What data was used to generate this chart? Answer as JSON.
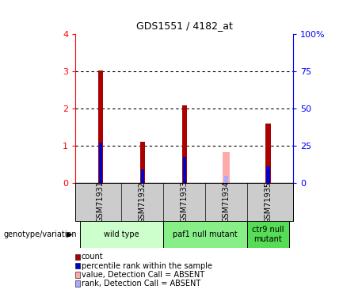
{
  "title": "GDS1551 / 4182_at",
  "samples": [
    "GSM71931",
    "GSM71932",
    "GSM71933",
    "GSM71934",
    "GSM71935"
  ],
  "count_values": [
    3.03,
    1.1,
    2.08,
    0.0,
    1.6
  ],
  "rank_values": [
    1.08,
    0.35,
    0.7,
    0.0,
    0.45
  ],
  "absent_count_values": [
    0.0,
    0.0,
    0.0,
    0.82,
    0.0
  ],
  "absent_rank_values": [
    0.0,
    0.0,
    0.0,
    0.18,
    0.0
  ],
  "ylim_left": [
    0,
    4
  ],
  "ylim_right": [
    0,
    100
  ],
  "yticks_left": [
    0,
    1,
    2,
    3,
    4
  ],
  "yticks_right": [
    0,
    25,
    50,
    75,
    100
  ],
  "yticklabels_right": [
    "0",
    "25",
    "50",
    "75",
    "100%"
  ],
  "count_color": "#aa0000",
  "rank_color": "#0000cc",
  "absent_count_color": "#ffaaaa",
  "absent_rank_color": "#aaaaff",
  "count_bar_width": 0.12,
  "rank_bar_width": 0.08,
  "absent_count_bar_width": 0.18,
  "absent_rank_bar_width": 0.1,
  "groups": [
    {
      "label": "wild type",
      "samples": [
        0,
        1
      ],
      "color": "#ccffcc"
    },
    {
      "label": "paf1 null mutant",
      "samples": [
        2,
        3
      ],
      "color": "#88ee88"
    },
    {
      "label": "ctr9 null\nmutant",
      "samples": [
        4
      ],
      "color": "#55dd55"
    }
  ],
  "genotype_label": "genotype/variation",
  "legend_items": [
    {
      "color": "#aa0000",
      "label": "count"
    },
    {
      "color": "#0000cc",
      "label": "percentile rank within the sample"
    },
    {
      "color": "#ffaaaa",
      "label": "value, Detection Call = ABSENT"
    },
    {
      "color": "#aaaaff",
      "label": "rank, Detection Call = ABSENT"
    }
  ],
  "background_color": "#ffffff",
  "plot_bg_color": "#ffffff",
  "xticklabel_bg": "#cccccc",
  "grid_color": "#000000"
}
